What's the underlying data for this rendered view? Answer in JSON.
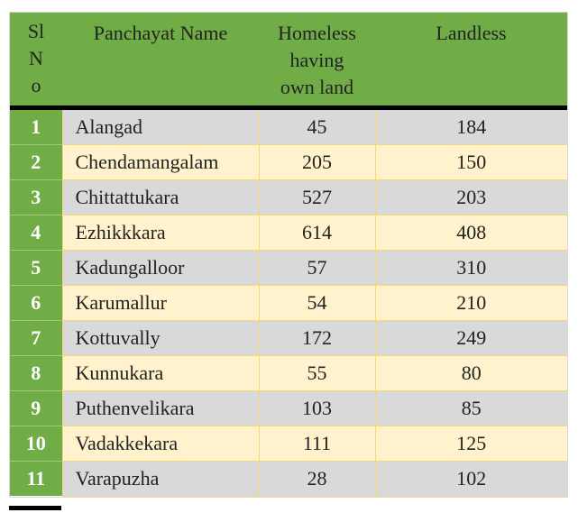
{
  "table": {
    "headers": {
      "sl_no": [
        "Sl",
        "N",
        "o"
      ],
      "panchayat_name": "Panchayat Name",
      "homeless": [
        "Homeless",
        "having",
        "own land"
      ],
      "landless": "Landless"
    },
    "rows": [
      {
        "sl": "1",
        "name": "Alangad",
        "homeless": "45",
        "landless": "184"
      },
      {
        "sl": "2",
        "name": "Chendamangalam",
        "homeless": "205",
        "landless": "150"
      },
      {
        "sl": "3",
        "name": "Chittattukara",
        "homeless": "527",
        "landless": "203"
      },
      {
        "sl": "4",
        "name": "Ezhikkkara",
        "homeless": "614",
        "landless": "408"
      },
      {
        "sl": "5",
        "name": "Kadungalloor",
        "homeless": "57",
        "landless": "310"
      },
      {
        "sl": "6",
        "name": "Karumallur",
        "homeless": "54",
        "landless": "210"
      },
      {
        "sl": "7",
        "name": "Kottuvally",
        "homeless": "172",
        "landless": "249"
      },
      {
        "sl": "8",
        "name": "Kunnukara",
        "homeless": "55",
        "landless": "80"
      },
      {
        "sl": "9",
        "name": "Puthenvelikara",
        "homeless": "103",
        "landless": "85"
      },
      {
        "sl": "10",
        "name": "Vadakkekara",
        "homeless": "111",
        "landless": "125"
      },
      {
        "sl": "11",
        "name": "Varapuzha",
        "homeless": "28",
        "landless": "102"
      }
    ]
  },
  "colors": {
    "header_green": "#70ad47",
    "row_gray": "#d9d9d9",
    "row_cream": "#fff2cc",
    "grid_gold": "#f4d777"
  }
}
